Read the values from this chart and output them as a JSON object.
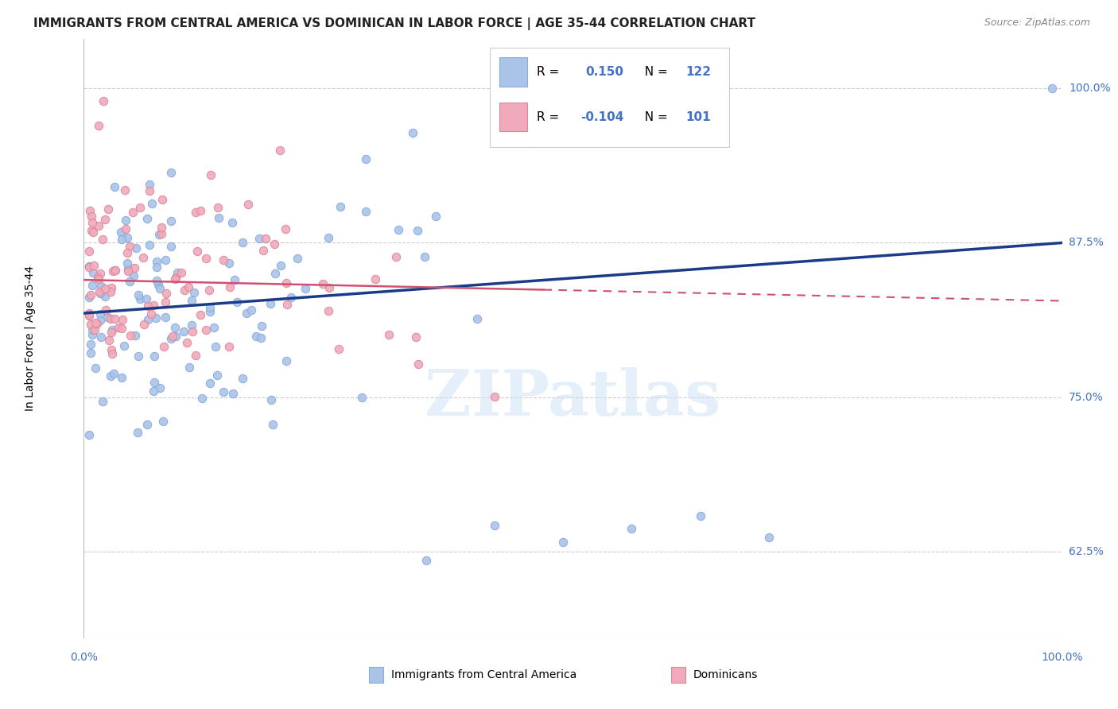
{
  "title": "IMMIGRANTS FROM CENTRAL AMERICA VS DOMINICAN IN LABOR FORCE | AGE 35-44 CORRELATION CHART",
  "source": "Source: ZipAtlas.com",
  "ylabel": "In Labor Force | Age 35-44",
  "yticks": [
    0.625,
    0.75,
    0.875,
    1.0
  ],
  "ytick_labels": [
    "62.5%",
    "75.0%",
    "87.5%",
    "100.0%"
  ],
  "xlim": [
    0.0,
    1.0
  ],
  "ylim": [
    0.555,
    1.04
  ],
  "blue_R": 0.15,
  "blue_N": 122,
  "pink_R": -0.104,
  "pink_N": 101,
  "blue_color": "#aac4e8",
  "pink_color": "#f0aabb",
  "blue_edge_color": "#88aadd",
  "pink_edge_color": "#dd8899",
  "blue_line_color": "#1a3a8a",
  "pink_line_color": "#d05070",
  "legend_label_blue": "Immigrants from Central America",
  "legend_label_pink": "Dominicans",
  "watermark": "ZIPatlas",
  "title_color": "#222222",
  "source_color": "#888888",
  "ytick_color": "#4472c4",
  "xtick_color": "#4472c4",
  "grid_color": "#cccccc",
  "blue_line_start_x": 0.0,
  "blue_line_start_y": 0.818,
  "blue_line_end_x": 1.0,
  "blue_line_end_y": 0.875,
  "pink_line_start_x": 0.0,
  "pink_line_start_y": 0.845,
  "pink_line_end_x": 1.0,
  "pink_line_end_y": 0.828
}
